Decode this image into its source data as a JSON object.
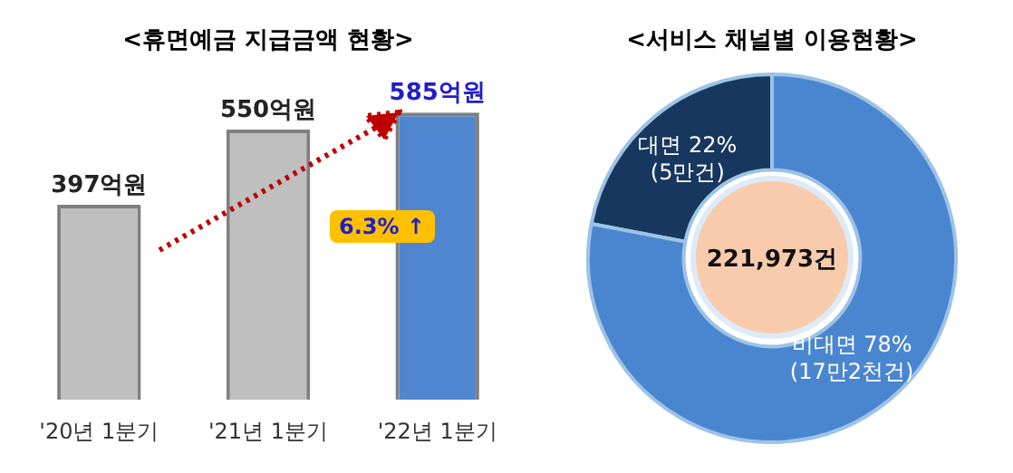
{
  "chart_data": [
    {
      "type": "bar",
      "title": "<휴면예금 지급금액 현황>",
      "categories": [
        "'20년 1분기",
        "'21년 1분기",
        "'22년 1분기"
      ],
      "values": [
        397,
        550,
        585
      ],
      "colors": [
        "#bfbfbf",
        "#bfbfbf",
        "#4f86cf"
      ],
      "value_labels": [
        "397억원",
        "550억원",
        "585억원"
      ],
      "annotations": [
        "6.3% ↑"
      ],
      "relative": false,
      "grid": false,
      "legend": false
    },
    {
      "type": "donut",
      "title": "<서비스 채널별 이용현황>",
      "categories": [
        "대면",
        "비대면"
      ],
      "values": [
        22,
        78
      ],
      "colors": [
        "#17375e",
        "#4a86d0"
      ],
      "value_labels": [
        "22%\n(5만건)",
        "78%\n(17만2천건)"
      ],
      "annotations": [
        "221,973건"
      ],
      "legend": false
    }
  ]
}
